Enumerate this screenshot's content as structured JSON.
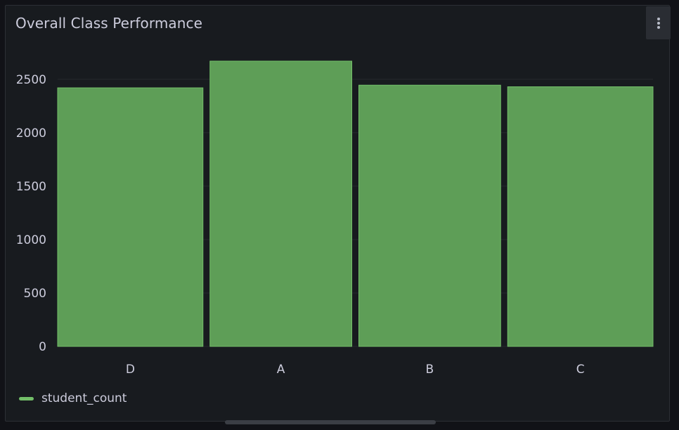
{
  "panel": {
    "title": "Overall Class Performance",
    "menu_icon": "vertical-dots-icon"
  },
  "colors": {
    "background": "#111217",
    "panel": "#181b1f",
    "bar_fill": "#5e9e57",
    "bar_stroke": "#73bf69",
    "grid": "#26292f",
    "text": "#ccccdc"
  },
  "chart_data": {
    "type": "bar",
    "categories": [
      "D",
      "A",
      "B",
      "C"
    ],
    "series": [
      {
        "name": "student_count",
        "values": [
          2420,
          2670,
          2445,
          2430
        ]
      }
    ],
    "yticks": [
      0,
      500,
      1000,
      1500,
      2000,
      2500
    ],
    "ylim": [
      0,
      2670
    ],
    "grid": true,
    "legend": "bottom-left"
  }
}
